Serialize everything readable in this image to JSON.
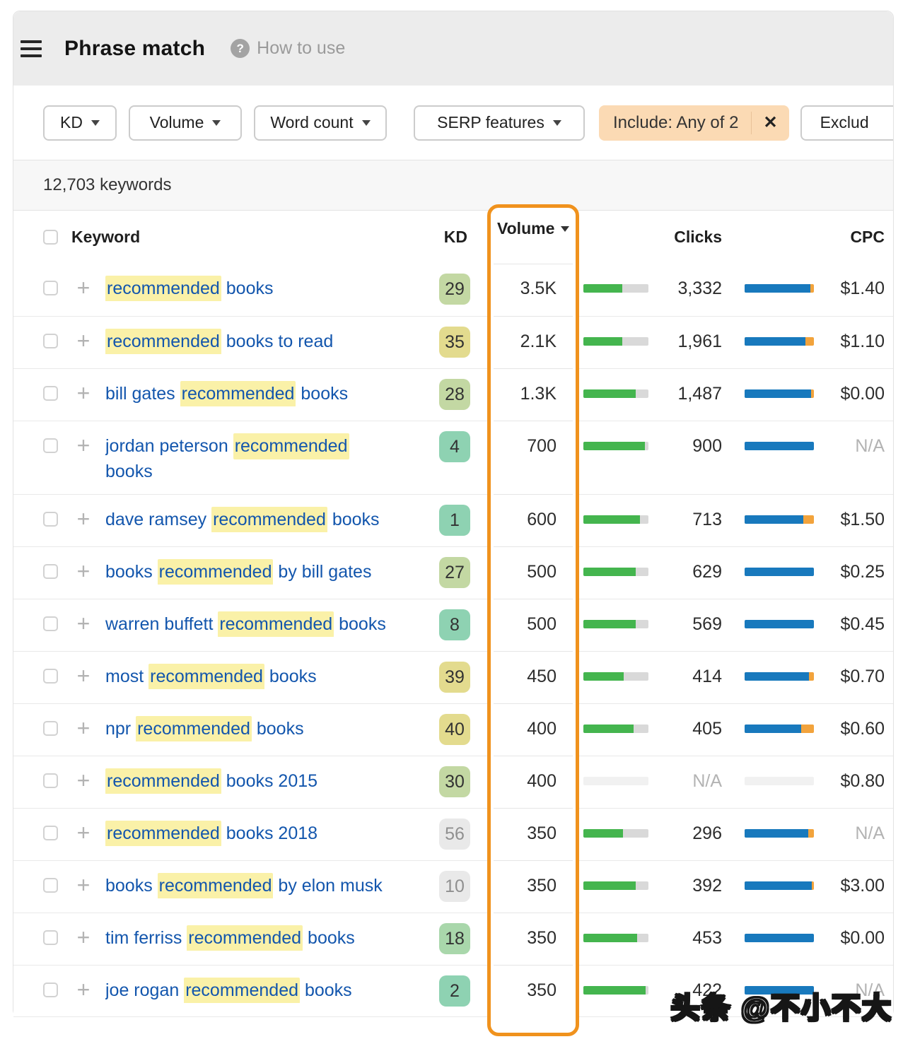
{
  "header": {
    "title": "Phrase match",
    "help_label": "How to use"
  },
  "icons": {
    "menu": "hamburger-icon",
    "help_glyph": "?",
    "plus_glyph": "+",
    "close_glyph": "✕",
    "sort_glyph": "caret-down"
  },
  "filters": {
    "kd_label": "KD",
    "volume_label": "Volume",
    "word_count_label": "Word count",
    "serp_features_label": "SERP features",
    "include_chip_label": "Include: Any of 2",
    "exclude_label": "Exclud"
  },
  "results_count": "12,703 keywords",
  "table": {
    "columns": {
      "keyword": "Keyword",
      "kd": "KD",
      "volume": "Volume",
      "clicks": "Clicks",
      "cpc": "CPC"
    },
    "sort": {
      "column": "Volume",
      "direction": "desc"
    },
    "rows": [
      {
        "keyword": [
          {
            "t": "recommended",
            "hl": true
          },
          {
            "t": " books"
          }
        ],
        "kd": "29",
        "kd_color": "green",
        "volume": "3.5K",
        "volume_bar_pct": 60,
        "clicks": "3,332",
        "clicks_bar_pct": 95,
        "cpc": "$1.40"
      },
      {
        "keyword": [
          {
            "t": "recommended",
            "hl": true
          },
          {
            "t": " books to read"
          }
        ],
        "kd": "35",
        "kd_color": "yellow",
        "volume": "2.1K",
        "volume_bar_pct": 60,
        "clicks": "1,961",
        "clicks_bar_pct": 88,
        "cpc": "$1.10"
      },
      {
        "keyword": [
          {
            "t": "bill gates "
          },
          {
            "t": "recommended",
            "hl": true
          },
          {
            "t": " books"
          }
        ],
        "kd": "28",
        "kd_color": "green",
        "volume": "1.3K",
        "volume_bar_pct": 80,
        "clicks": "1,487",
        "clicks_bar_pct": 96,
        "cpc": "$0.00"
      },
      {
        "keyword": [
          {
            "t": "jordan peterson "
          },
          {
            "t": "recommended",
            "hl": true
          },
          {
            "br": true
          },
          {
            "t": "books"
          }
        ],
        "kd": "4",
        "kd_color": "teal",
        "volume": "700",
        "volume_bar_pct": 95,
        "clicks": "900",
        "clicks_bar_pct": 100,
        "cpc": "N/A"
      },
      {
        "keyword": [
          {
            "t": "dave ramsey "
          },
          {
            "t": "recommended",
            "hl": true
          },
          {
            "t": " books"
          }
        ],
        "kd": "1",
        "kd_color": "teal",
        "volume": "600",
        "volume_bar_pct": 87,
        "clicks": "713",
        "clicks_bar_pct": 85,
        "cpc": "$1.50"
      },
      {
        "keyword": [
          {
            "t": "books "
          },
          {
            "t": "recommended",
            "hl": true
          },
          {
            "t": " by bill gates"
          }
        ],
        "kd": "27",
        "kd_color": "green",
        "volume": "500",
        "volume_bar_pct": 80,
        "clicks": "629",
        "clicks_bar_pct": 100,
        "cpc": "$0.25"
      },
      {
        "keyword": [
          {
            "t": "warren buffett "
          },
          {
            "t": "recommended",
            "hl": true
          },
          {
            "t": " books"
          }
        ],
        "kd": "8",
        "kd_color": "teal",
        "volume": "500",
        "volume_bar_pct": 80,
        "clicks": "569",
        "clicks_bar_pct": 100,
        "cpc": "$0.45"
      },
      {
        "keyword": [
          {
            "t": "most "
          },
          {
            "t": "recommended",
            "hl": true
          },
          {
            "t": " books"
          }
        ],
        "kd": "39",
        "kd_color": "yellow",
        "volume": "450",
        "volume_bar_pct": 62,
        "clicks": "414",
        "clicks_bar_pct": 93,
        "cpc": "$0.70"
      },
      {
        "keyword": [
          {
            "t": "npr "
          },
          {
            "t": "recommended",
            "hl": true
          },
          {
            "t": " books"
          }
        ],
        "kd": "40",
        "kd_color": "yellow",
        "volume": "400",
        "volume_bar_pct": 77,
        "clicks": "405",
        "clicks_bar_pct": 82,
        "cpc": "$0.60"
      },
      {
        "keyword": [
          {
            "t": "recommended",
            "hl": true
          },
          {
            "t": " books 2015"
          }
        ],
        "kd": "30",
        "kd_color": "green",
        "volume": "400",
        "volume_bar_pct": 0,
        "bars_empty": true,
        "clicks": "N/A",
        "clicks_bar_pct": 0,
        "cpc": "$0.80"
      },
      {
        "keyword": [
          {
            "t": "recommended",
            "hl": true
          },
          {
            "t": " books 2018"
          }
        ],
        "kd": "56",
        "kd_color": "gray",
        "volume": "350",
        "volume_bar_pct": 61,
        "clicks": "296",
        "clicks_bar_pct": 92,
        "cpc": "N/A"
      },
      {
        "keyword": [
          {
            "t": "books "
          },
          {
            "t": "recommended",
            "hl": true
          },
          {
            "t": " by elon musk"
          }
        ],
        "kd": "10",
        "kd_color": "gray",
        "volume": "350",
        "volume_bar_pct": 80,
        "clicks": "392",
        "clicks_bar_pct": 97,
        "cpc": "$3.00"
      },
      {
        "keyword": [
          {
            "t": "tim ferriss "
          },
          {
            "t": "recommended",
            "hl": true
          },
          {
            "t": " books"
          }
        ],
        "kd": "18",
        "kd_color": "teal2",
        "volume": "350",
        "volume_bar_pct": 83,
        "clicks": "453",
        "clicks_bar_pct": 100,
        "cpc": "$0.00"
      },
      {
        "keyword": [
          {
            "t": "joe rogan "
          },
          {
            "t": "recommended",
            "hl": true
          },
          {
            "t": " books"
          }
        ],
        "kd": "2",
        "kd_color": "teal",
        "volume": "350",
        "volume_bar_pct": 96,
        "clicks": "422",
        "clicks_bar_pct": 100,
        "cpc": "N/A"
      }
    ]
  },
  "watermark": "头条 @不小不大",
  "colors": {
    "accent_orange": "#F0921D",
    "highlight_yellow": "#FAF1A8",
    "link_blue": "#1356AD",
    "volume_bar_green": "#44B54E",
    "volume_bar_track": "#D9D9D9",
    "clicks_bar_blue": "#1879BD",
    "clicks_bar_orange": "#F2A33C",
    "kd_teal": "#8ED2B2",
    "kd_green_light": "#A9D7AB",
    "kd_green": "#C3D8A3",
    "kd_yellow": "#E3DB8E",
    "kd_gray": "#E9E9E9",
    "include_chip_bg": "#FBDAB4",
    "header_bg": "#ECECEC",
    "count_band_bg": "#F7F7F7"
  }
}
